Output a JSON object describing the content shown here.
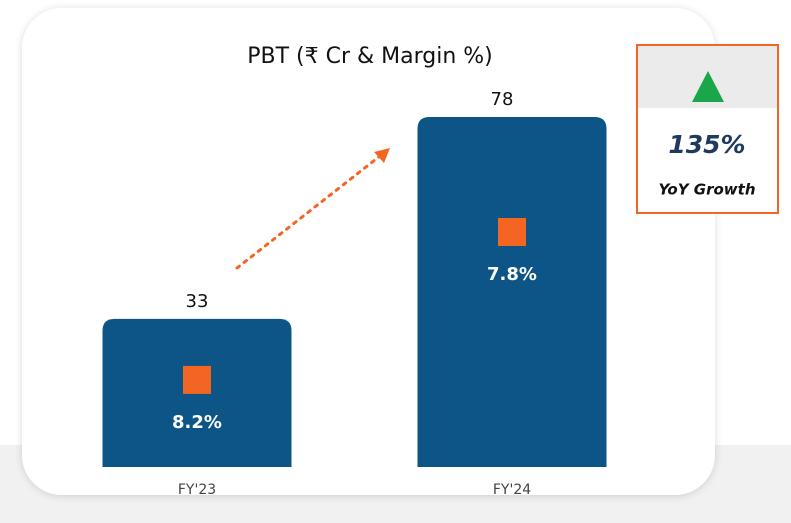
{
  "chart_data": {
    "type": "bar",
    "title": "PBT (₹ Cr & Margin %)",
    "categories": [
      "FY'23",
      "FY'24"
    ],
    "values": [
      33,
      78
    ],
    "color": "#0d5587",
    "margin": {
      "values": [
        8.2,
        7.8
      ],
      "value_labels": [
        "8.2%",
        "7.8%"
      ],
      "color": "#f26522"
    },
    "growth": {
      "value": 135,
      "value_label": "135%",
      "label": "YoY Growth",
      "color": "#1aa64a"
    }
  }
}
